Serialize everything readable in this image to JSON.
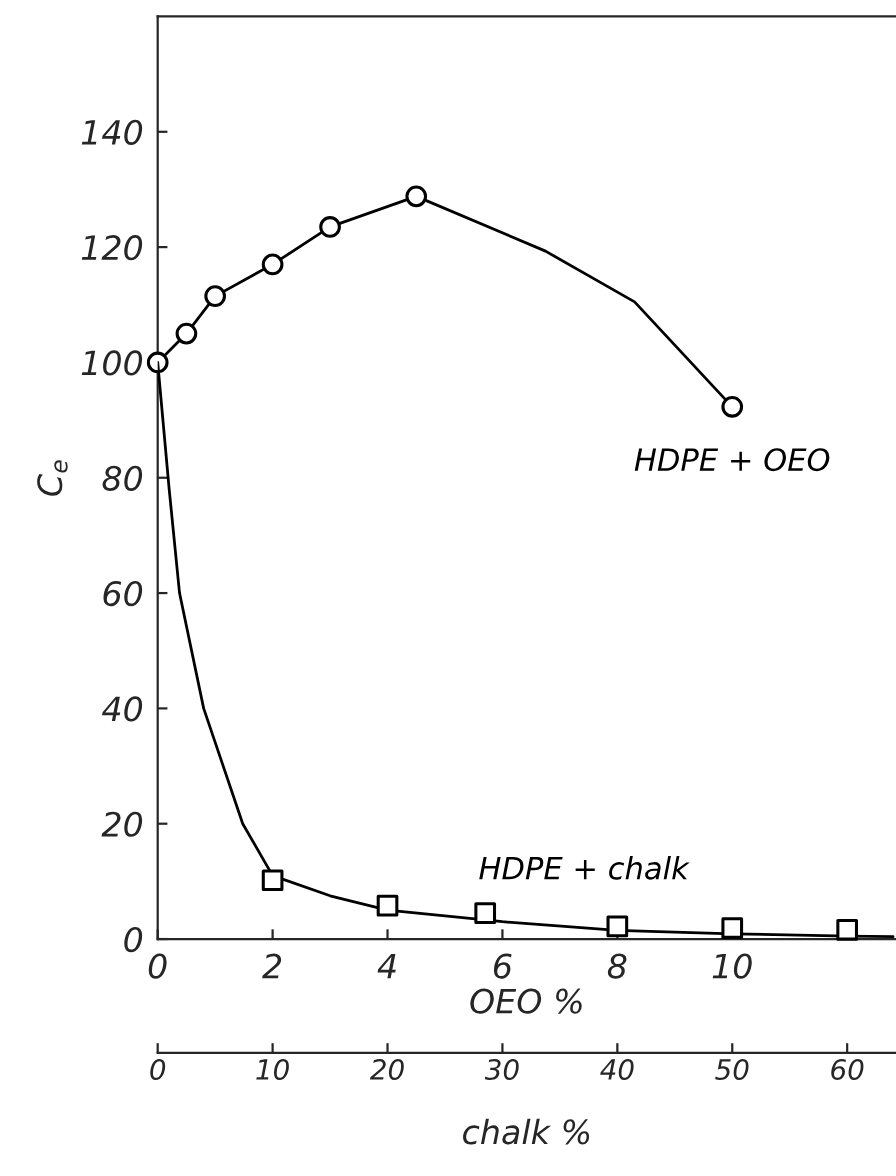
{
  "chart_data": {
    "type": "scatter",
    "ylabel": "C$_{e}$",
    "xlabel": "OEO %",
    "x2label": "chalk %",
    "xlim": [
      0,
      12.85
    ],
    "xticks": [
      0,
      2,
      4,
      6,
      8,
      10
    ],
    "x2lim": [
      0,
      64.25
    ],
    "x2ticks": [
      0,
      10,
      20,
      30,
      40,
      50,
      60
    ],
    "ylim": [
      0,
      160
    ],
    "yticks": [
      0,
      20,
      40,
      60,
      80,
      100,
      120,
      140
    ],
    "legend": false,
    "grid": false,
    "series": [
      {
        "type": "line",
        "color": "#000000",
        "marker": "none",
        "x": [
          0,
          0.5,
          1,
          2,
          3,
          4.5,
          6.75,
          8.3,
          10
        ],
        "values": [
          100,
          105,
          111.5,
          117,
          123.5,
          128.8,
          119.3,
          110.5,
          92.3
        ]
      },
      {
        "name": "HDPE + OEO",
        "color": "#000000",
        "marker": "circle",
        "x": [
          0,
          0.5,
          1,
          2,
          3,
          4.5,
          10
        ],
        "values": [
          100,
          105,
          111.5,
          117,
          123.5,
          128.8,
          92.3
        ]
      },
      {
        "type": "line",
        "axis": "x2",
        "color": "#000000",
        "marker": "none",
        "x": [
          0,
          1,
          1.9,
          4,
          7.4,
          10,
          15,
          20,
          30,
          40,
          50,
          60,
          64
        ],
        "values": [
          100,
          78,
          60,
          40,
          20,
          11,
          7.5,
          5,
          3,
          1.5,
          0.9,
          0.5,
          0.4
        ]
      },
      {
        "axis": "x2",
        "name": "HDPE + chalk",
        "color": "#000000",
        "marker": "square",
        "x": [
          10,
          20,
          28.5,
          40,
          50,
          60
        ],
        "values": [
          10.2,
          5.8,
          4.5,
          2.2,
          1.9,
          1.6
        ]
      }
    ]
  }
}
